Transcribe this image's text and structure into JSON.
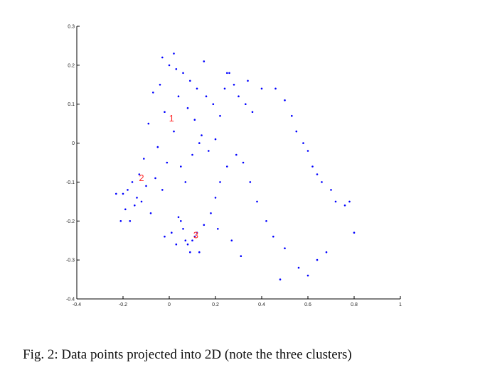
{
  "caption": "Fig. 2: Data points projected into 2D (note the three clusters)",
  "chart_data": {
    "type": "scatter",
    "title": "",
    "xlabel": "",
    "ylabel": "",
    "xlim": [
      -0.4,
      1.0
    ],
    "ylim": [
      -0.4,
      0.3
    ],
    "xticks": [
      -0.4,
      -0.2,
      0,
      0.2,
      0.4,
      0.6,
      0.8,
      1
    ],
    "xtick_labels": [
      "-0.4",
      "-0.2",
      "0",
      "0.2",
      "0.4",
      "0.6",
      "0.8",
      "1"
    ],
    "yticks": [
      -0.4,
      -0.3,
      -0.2,
      -0.1,
      0,
      0.1,
      0.2,
      0.3
    ],
    "ytick_labels": [
      "-0.4",
      "-0.3",
      "-0.2",
      "-0.1",
      "0",
      "0.1",
      "0.2",
      "0.3"
    ],
    "grid": false,
    "marker_color": "#0000ff",
    "label_color": "#ff2a2a",
    "cluster_labels": [
      {
        "text": "1",
        "x": 0.01,
        "y": 0.065
      },
      {
        "text": "2",
        "x": -0.12,
        "y": -0.088
      },
      {
        "text": "3",
        "x": 0.115,
        "y": -0.235
      }
    ],
    "series": [
      {
        "x": [
          0.0,
          0.03,
          0.06,
          0.09,
          0.12,
          -0.04,
          -0.07,
          0.16,
          0.19,
          0.22,
          0.04,
          0.08,
          0.11,
          -0.02,
          -0.09,
          0.14,
          0.02,
          -0.05,
          0.1,
          0.13,
          0.17,
          0.2,
          0.05,
          -0.01,
          -0.11,
          -0.13,
          -0.16,
          -0.18,
          -0.2,
          -0.14,
          -0.1,
          -0.06,
          -0.03,
          0.07,
          0.24,
          0.26,
          0.28,
          0.3,
          0.33,
          0.36,
          0.4,
          0.46,
          0.5,
          0.53,
          0.55,
          0.58,
          0.6,
          0.62,
          0.64,
          0.66,
          0.7,
          0.72,
          0.76,
          0.78,
          0.5,
          0.45,
          0.42,
          0.38,
          0.35,
          0.32,
          0.29,
          0.25,
          0.22,
          0.2,
          0.18,
          0.15,
          0.12,
          0.1,
          0.08,
          0.06,
          0.04,
          0.13,
          0.09,
          0.07,
          0.11,
          0.05,
          -0.08,
          -0.12,
          -0.15,
          -0.17,
          -0.21,
          -0.23,
          -0.19,
          -0.02,
          0.01,
          0.03,
          0.21,
          0.27,
          0.31,
          0.56,
          0.6,
          0.64,
          0.68,
          0.8,
          0.48,
          0.02,
          -0.03,
          0.15,
          0.25,
          0.34
        ],
        "y": [
          0.2,
          0.19,
          0.18,
          0.16,
          0.14,
          0.15,
          0.13,
          0.12,
          0.1,
          0.07,
          0.12,
          0.09,
          0.06,
          0.08,
          0.05,
          0.02,
          0.03,
          -0.01,
          -0.03,
          0.0,
          -0.02,
          0.01,
          -0.06,
          -0.05,
          -0.04,
          -0.08,
          -0.1,
          -0.12,
          -0.13,
          -0.14,
          -0.11,
          -0.09,
          -0.12,
          -0.1,
          0.14,
          0.18,
          0.15,
          0.12,
          0.1,
          0.08,
          0.14,
          0.14,
          0.11,
          0.07,
          0.03,
          0.0,
          -0.02,
          -0.06,
          -0.08,
          -0.1,
          -0.12,
          -0.15,
          -0.16,
          -0.15,
          -0.27,
          -0.24,
          -0.2,
          -0.15,
          -0.1,
          -0.05,
          -0.03,
          -0.06,
          -0.1,
          -0.14,
          -0.18,
          -0.21,
          -0.23,
          -0.25,
          -0.26,
          -0.22,
          -0.19,
          -0.28,
          -0.28,
          -0.25,
          -0.24,
          -0.2,
          -0.18,
          -0.15,
          -0.16,
          -0.2,
          -0.2,
          -0.13,
          -0.17,
          -0.24,
          -0.23,
          -0.26,
          -0.22,
          -0.25,
          -0.29,
          -0.32,
          -0.34,
          -0.3,
          -0.28,
          -0.23,
          -0.35,
          0.23,
          0.22,
          0.21,
          0.18,
          0.16
        ]
      }
    ]
  }
}
